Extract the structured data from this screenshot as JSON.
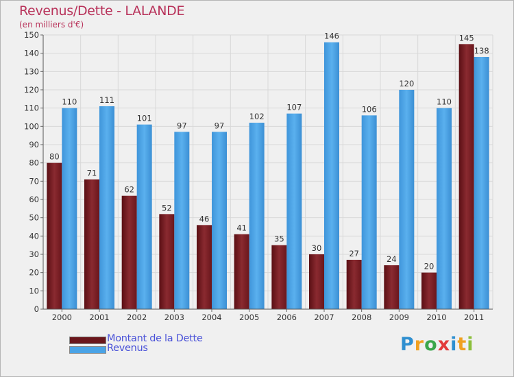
{
  "header": {
    "title": "Revenus/Dette - LALANDE",
    "subtitle": "(en milliers d'€)"
  },
  "logo": {
    "text": "Proxiti"
  },
  "colors": {
    "debt": "#7a1c22",
    "revenue": "#4aa3e6",
    "title": "#b8325a",
    "legend_text": "#4a52d8"
  },
  "chart_data": {
    "type": "bar",
    "title": "Revenus/Dette - LALANDE",
    "subtitle": "(en milliers d'€)",
    "xlabel": "",
    "ylabel": "",
    "ylim": [
      0,
      150
    ],
    "y_ticks": [
      0,
      10,
      20,
      30,
      40,
      50,
      60,
      70,
      80,
      90,
      100,
      110,
      120,
      130,
      140,
      150
    ],
    "grid": true,
    "legend_position": "bottom-left",
    "categories": [
      "2000",
      "2001",
      "2002",
      "2003",
      "2004",
      "2005",
      "2006",
      "2007",
      "2008",
      "2009",
      "2010",
      "2011"
    ],
    "series": [
      {
        "name": "Montant de la Dette",
        "color": "#7a1c22",
        "values": [
          80,
          71,
          62,
          52,
          46,
          41,
          35,
          30,
          27,
          24,
          20,
          145
        ]
      },
      {
        "name": "Revenus",
        "color": "#4aa3e6",
        "values": [
          110,
          111,
          101,
          97,
          97,
          102,
          107,
          146,
          106,
          120,
          110,
          138
        ]
      }
    ]
  }
}
